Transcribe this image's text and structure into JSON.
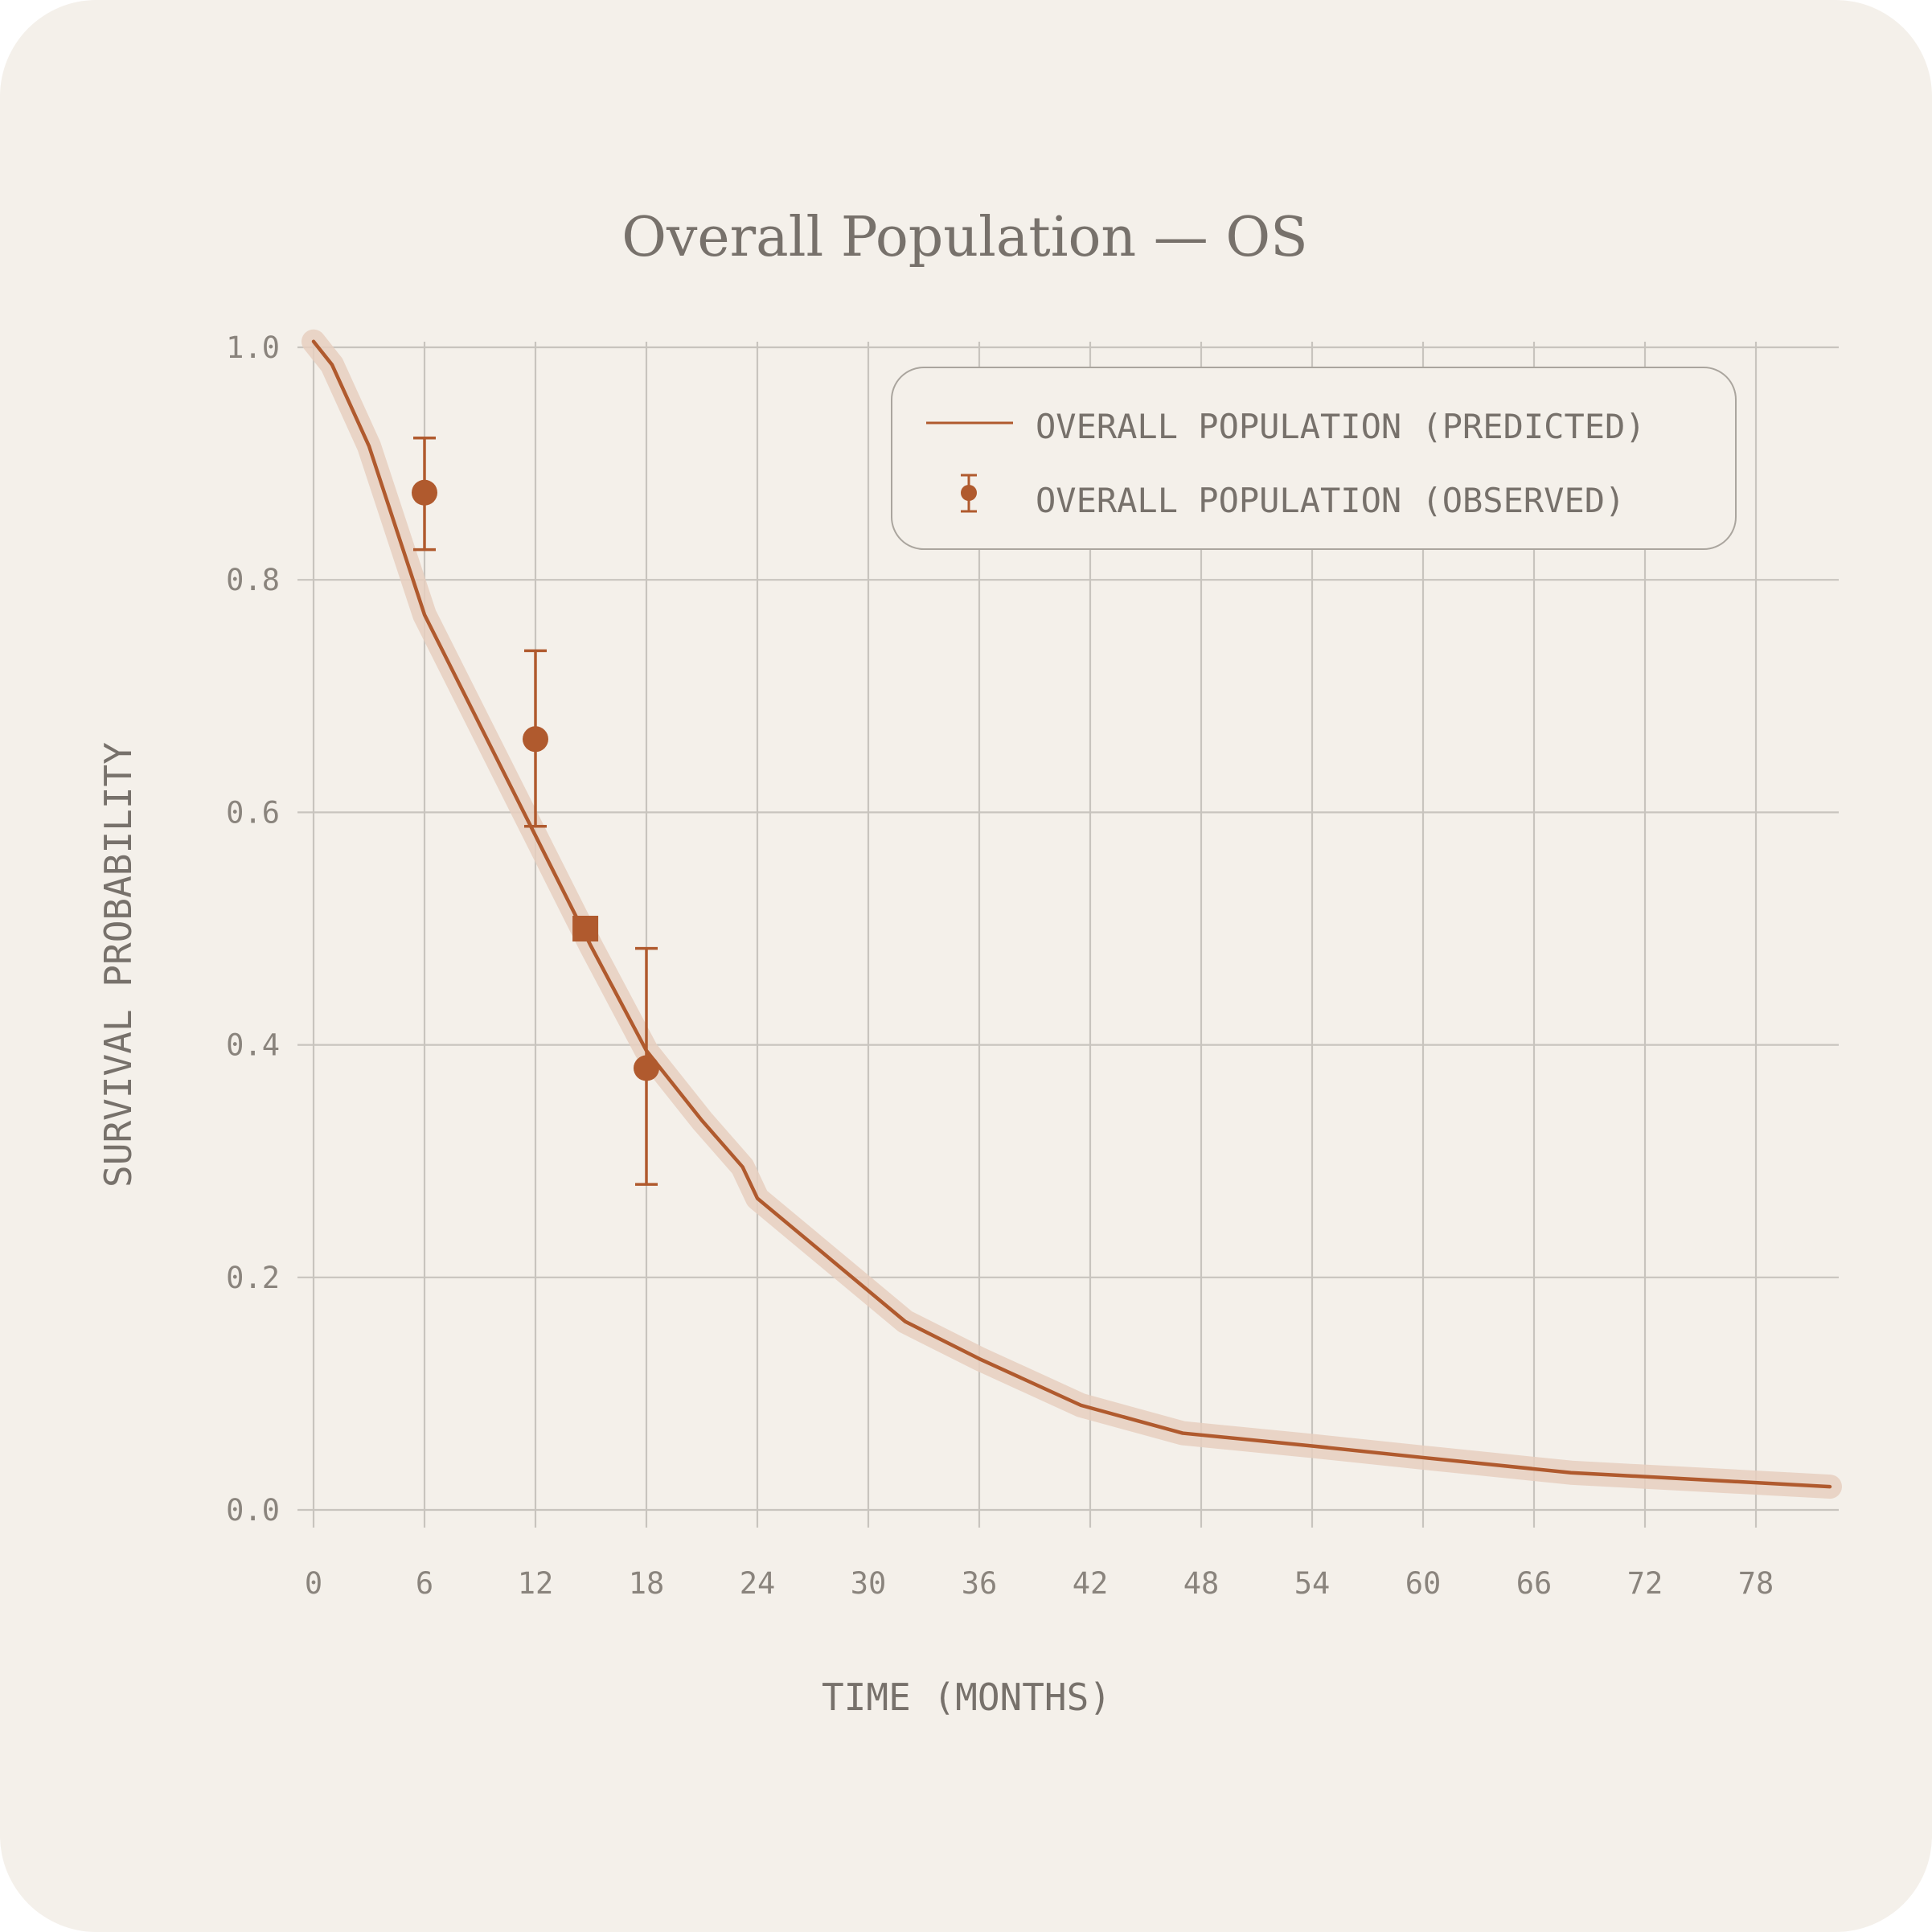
{
  "chart_data": {
    "type": "line",
    "title": "Overall Population — OS",
    "xlabel": "TIME (MONTHS)",
    "ylabel": "SURVIVAL PROBABILITY",
    "xlim": [
      0,
      82.5
    ],
    "ylim": [
      0,
      1.0
    ],
    "x_ticks": [
      0,
      6,
      12,
      18,
      24,
      30,
      36,
      42,
      48,
      54,
      60,
      66,
      72,
      78
    ],
    "x_tick_labels": [
      "0",
      "6",
      "12",
      "18",
      "24",
      "30",
      "36",
      "42",
      "48",
      "54",
      "60",
      "66",
      "72",
      "78"
    ],
    "y_ticks": [
      0.0,
      0.2,
      0.4,
      0.6,
      0.8,
      1.0
    ],
    "y_tick_labels": [
      "0.0",
      "0.2",
      "0.4",
      "0.6",
      "0.8",
      "1.0"
    ],
    "grid": true,
    "legend_position": "top-right",
    "series": [
      {
        "name": "OVERALL POPULATION (PREDICTED)",
        "kind": "line",
        "color": "#b05a2e",
        "band_color": "#e6cfc0",
        "x": [
          0,
          1,
          3,
          6,
          9,
          12,
          15,
          18,
          21,
          23.2,
          24,
          28,
          32,
          36,
          41.5,
          47,
          54,
          60,
          68,
          75,
          82
        ],
        "y": [
          1.005,
          0.985,
          0.915,
          0.77,
          0.675,
          0.58,
          0.485,
          0.395,
          0.335,
          0.295,
          0.268,
          0.215,
          0.162,
          0.13,
          0.09,
          0.066,
          0.055,
          0.045,
          0.032,
          0.026,
          0.02
        ]
      },
      {
        "name": "OVERALL POPULATION (OBSERVED)",
        "kind": "errorbar",
        "color": "#b05a2e",
        "x": [
          6,
          12,
          18
        ],
        "y": [
          0.875,
          0.663,
          0.38
        ],
        "y_low": [
          0.826,
          0.588,
          0.28
        ],
        "y_high": [
          0.922,
          0.739,
          0.483
        ]
      }
    ],
    "median_marker": {
      "x": 14.7,
      "y": 0.5,
      "shape": "square",
      "color": "#b05a2e"
    }
  }
}
